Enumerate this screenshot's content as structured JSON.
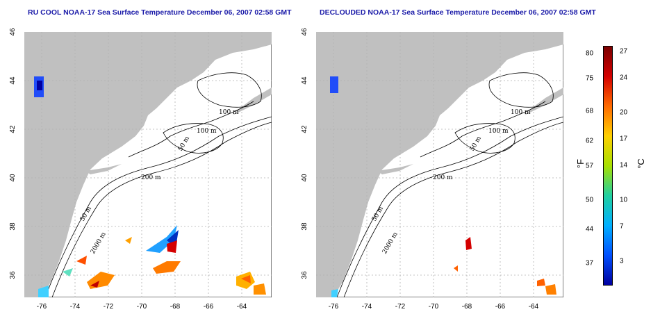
{
  "titles": {
    "left": "RU COOL NOAA-17 Sea Surface Temperature December 06, 2007 02:58 GMT",
    "right": "DECLOUDED NOAA-17 Sea Surface Temperature December 06, 2007 02:58 GMT"
  },
  "axes": {
    "lon_ticks": [
      "-76",
      "-74",
      "-72",
      "-70",
      "-68",
      "-66",
      "-64"
    ],
    "lat_ticks": [
      "46",
      "44",
      "42",
      "40",
      "38",
      "36"
    ],
    "lon_range": [
      -77,
      -63
    ],
    "lat_range": [
      35,
      46
    ]
  },
  "contour_labels": [
    "100 m",
    "100 m",
    "50 m",
    "200 m",
    "50 m",
    "2000 m"
  ],
  "colorbar": {
    "fahrenheit": [
      "80",
      "75",
      "68",
      "62",
      "57",
      "50",
      "44",
      "37"
    ],
    "celsius": [
      "27",
      "24",
      "20",
      "17",
      "14",
      "10",
      "7",
      "3"
    ],
    "unit_f": "°F",
    "unit_c": "°C",
    "colors": [
      "#7a0000",
      "#d40000",
      "#ff6a00",
      "#ffd000",
      "#a8e000",
      "#20d0a0",
      "#00b0ff",
      "#0050ff",
      "#0000a0"
    ]
  }
}
